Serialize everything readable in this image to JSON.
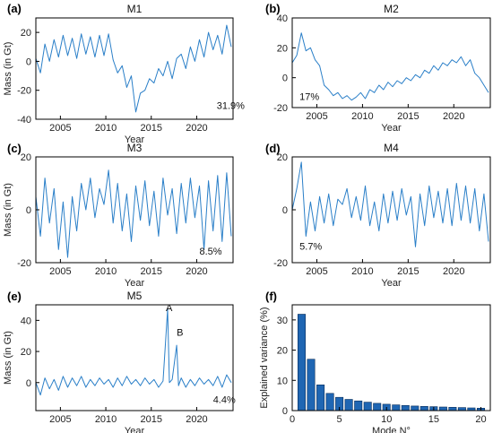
{
  "chart_data": [
    {
      "type": "line",
      "panel": "(a)",
      "title": "M1",
      "xlabel": "Year",
      "ylabel": "Mass (in Gt)",
      "xlim": [
        2002.3,
        2024.0
      ],
      "ylim": [
        -40,
        30
      ],
      "xticks": [
        2005,
        2010,
        2015,
        2020
      ],
      "yticks": [
        -40,
        -20,
        0,
        20
      ],
      "annotations": [
        {
          "text": "31.9%",
          "x": 2022.2,
          "y": -33
        }
      ],
      "series": [
        {
          "x": [
            2002.3,
            2002.8,
            2003.3,
            2003.8,
            2004.3,
            2004.8,
            2005.3,
            2005.8,
            2006.3,
            2006.8,
            2007.3,
            2007.8,
            2008.3,
            2008.8,
            2009.3,
            2009.8,
            2010.3,
            2010.8,
            2011.3,
            2011.8,
            2012.3,
            2012.8,
            2013.3,
            2013.8,
            2014.3,
            2014.8,
            2015.3,
            2015.8,
            2016.3,
            2016.8,
            2017.3,
            2017.8,
            2018.3,
            2018.8,
            2019.3,
            2019.8,
            2020.3,
            2020.8,
            2021.3,
            2021.8,
            2022.3,
            2022.8,
            2023.3,
            2023.8
          ],
          "y": [
            2,
            -8,
            12,
            0,
            15,
            3,
            18,
            4,
            16,
            2,
            19,
            5,
            17,
            3,
            18,
            4,
            19,
            1,
            -8,
            -3,
            -18,
            -10,
            -35,
            -22,
            -20,
            -12,
            -15,
            -5,
            -10,
            0,
            -12,
            2,
            5,
            -5,
            10,
            0,
            15,
            3,
            20,
            8,
            18,
            5,
            25,
            10
          ]
        }
      ]
    },
    {
      "type": "line",
      "panel": "(b)",
      "title": "M2",
      "xlabel": "Year",
      "ylabel": "",
      "xlim": [
        2002.3,
        2024.0
      ],
      "ylim": [
        -20,
        40
      ],
      "xticks": [
        2005,
        2010,
        2015,
        2020
      ],
      "yticks": [
        -20,
        0,
        20,
        40
      ],
      "annotations": [
        {
          "text": "17%",
          "x": 2003.1,
          "y": -15
        }
      ],
      "series": [
        {
          "x": [
            2002.3,
            2002.8,
            2003.3,
            2003.8,
            2004.3,
            2004.8,
            2005.3,
            2005.8,
            2006.3,
            2006.8,
            2007.3,
            2007.8,
            2008.3,
            2008.8,
            2009.3,
            2009.8,
            2010.3,
            2010.8,
            2011.3,
            2011.8,
            2012.3,
            2012.8,
            2013.3,
            2013.8,
            2014.3,
            2014.8,
            2015.3,
            2015.8,
            2016.3,
            2016.8,
            2017.3,
            2017.8,
            2018.3,
            2018.8,
            2019.3,
            2019.8,
            2020.3,
            2020.8,
            2021.3,
            2021.8,
            2022.3,
            2022.8,
            2023.3,
            2023.8
          ],
          "y": [
            10,
            15,
            30,
            18,
            20,
            12,
            8,
            -5,
            -8,
            -12,
            -10,
            -14,
            -12,
            -15,
            -13,
            -10,
            -14,
            -8,
            -10,
            -5,
            -8,
            -3,
            -6,
            -2,
            -4,
            0,
            -2,
            2,
            0,
            5,
            3,
            8,
            5,
            10,
            8,
            12,
            10,
            14,
            8,
            12,
            3,
            0,
            -5,
            -10
          ]
        }
      ]
    },
    {
      "type": "line",
      "panel": "(c)",
      "title": "M3",
      "xlabel": "Year",
      "ylabel": "Mass (in Gt)",
      "xlim": [
        2002.3,
        2024.0
      ],
      "ylim": [
        -20,
        20
      ],
      "xticks": [
        2005,
        2010,
        2015,
        2020
      ],
      "yticks": [
        -20,
        0,
        20
      ],
      "annotations": [
        {
          "text": "8.5%",
          "x": 2020.3,
          "y": -17
        }
      ],
      "series": [
        {
          "x": [
            2002.3,
            2002.8,
            2003.3,
            2003.8,
            2004.3,
            2004.8,
            2005.3,
            2005.8,
            2006.3,
            2006.8,
            2007.3,
            2007.8,
            2008.3,
            2008.8,
            2009.3,
            2009.8,
            2010.3,
            2010.8,
            2011.3,
            2011.8,
            2012.3,
            2012.8,
            2013.3,
            2013.8,
            2014.3,
            2014.8,
            2015.3,
            2015.8,
            2016.3,
            2016.8,
            2017.3,
            2017.8,
            2018.3,
            2018.8,
            2019.3,
            2019.8,
            2020.3,
            2020.8,
            2021.3,
            2021.8,
            2022.3,
            2022.8,
            2023.3,
            2023.8
          ],
          "y": [
            5,
            -10,
            12,
            -5,
            8,
            -15,
            3,
            -18,
            5,
            -8,
            10,
            0,
            12,
            -3,
            8,
            2,
            15,
            -5,
            10,
            -8,
            6,
            -12,
            9,
            -4,
            11,
            -6,
            7,
            -10,
            12,
            -2,
            8,
            -9,
            10,
            -5,
            12,
            -3,
            9,
            -15,
            11,
            -8,
            13,
            -12,
            14,
            -10
          ]
        }
      ]
    },
    {
      "type": "line",
      "panel": "(d)",
      "title": "M4",
      "xlabel": "Year",
      "ylabel": "",
      "xlim": [
        2002.3,
        2024.0
      ],
      "ylim": [
        -20,
        20
      ],
      "xticks": [
        2005,
        2010,
        2015,
        2020
      ],
      "yticks": [
        -20,
        0,
        20
      ],
      "annotations": [
        {
          "text": "5.7%",
          "x": 2003.1,
          "y": -15
        }
      ],
      "series": [
        {
          "x": [
            2002.3,
            2002.8,
            2003.3,
            2003.8,
            2004.3,
            2004.8,
            2005.3,
            2005.8,
            2006.3,
            2006.8,
            2007.3,
            2007.8,
            2008.3,
            2008.8,
            2009.3,
            2009.8,
            2010.3,
            2010.8,
            2011.3,
            2011.8,
            2012.3,
            2012.8,
            2013.3,
            2013.8,
            2014.3,
            2014.8,
            2015.3,
            2015.8,
            2016.3,
            2016.8,
            2017.3,
            2017.8,
            2018.3,
            2018.8,
            2019.3,
            2019.8,
            2020.3,
            2020.8,
            2021.3,
            2021.8,
            2022.3,
            2022.8,
            2023.3,
            2023.8
          ],
          "y": [
            0,
            8,
            18,
            -10,
            3,
            -8,
            5,
            -5,
            6,
            -6,
            4,
            2,
            8,
            -3,
            5,
            -4,
            9,
            -6,
            3,
            -8,
            6,
            -5,
            7,
            -4,
            8,
            -2,
            5,
            -14,
            6,
            -6,
            9,
            -3,
            7,
            -5,
            8,
            -6,
            10,
            -4,
            9,
            -5,
            8,
            -8,
            6,
            -12
          ]
        }
      ]
    },
    {
      "type": "line",
      "panel": "(e)",
      "title": "M5",
      "xlabel": "Year",
      "ylabel": "Mass (in Gt)",
      "xlim": [
        2002.3,
        2024.0
      ],
      "ylim": [
        -18,
        50
      ],
      "xticks": [
        2005,
        2010,
        2015,
        2020
      ],
      "yticks": [
        0,
        20,
        40
      ],
      "annotations": [
        {
          "text": "A",
          "x": 2016.6,
          "y": 46
        },
        {
          "text": "B",
          "x": 2017.8,
          "y": 30
        },
        {
          "text": "4.4%",
          "x": 2021.8,
          "y": -13
        }
      ],
      "series": [
        {
          "x": [
            2002.3,
            2002.8,
            2003.3,
            2003.8,
            2004.3,
            2004.8,
            2005.3,
            2005.8,
            2006.3,
            2006.8,
            2007.3,
            2007.8,
            2008.3,
            2008.8,
            2009.3,
            2009.8,
            2010.3,
            2010.8,
            2011.3,
            2011.8,
            2012.3,
            2012.8,
            2013.3,
            2013.8,
            2014.3,
            2014.8,
            2015.3,
            2015.8,
            2016.3,
            2016.8,
            2017.0,
            2017.3,
            2017.8,
            2018.0,
            2018.3,
            2018.8,
            2019.3,
            2019.8,
            2020.3,
            2020.8,
            2021.3,
            2021.8,
            2022.3,
            2022.8,
            2023.3,
            2023.8
          ],
          "y": [
            0,
            -8,
            3,
            -4,
            2,
            -5,
            4,
            -3,
            3,
            -2,
            4,
            -3,
            2,
            -2,
            3,
            -1,
            2,
            -3,
            3,
            -2,
            4,
            -1,
            2,
            -2,
            3,
            -1,
            2,
            -3,
            1,
            47,
            0,
            2,
            24,
            -2,
            3,
            -3,
            2,
            -2,
            3,
            -1,
            2,
            -2,
            4,
            -3,
            5,
            0
          ]
        }
      ]
    },
    {
      "type": "bar",
      "panel": "(f)",
      "title": "",
      "xlabel": "Mode N°",
      "ylabel": "Explained variance (%)",
      "xlim": [
        0,
        21
      ],
      "ylim": [
        0,
        35
      ],
      "xticks": [
        0,
        5,
        10,
        15,
        20
      ],
      "yticks": [
        0,
        10,
        20,
        30
      ],
      "categories": [
        1,
        2,
        3,
        4,
        5,
        6,
        7,
        8,
        9,
        10,
        11,
        12,
        13,
        14,
        15,
        16,
        17,
        18,
        19,
        20
      ],
      "values": [
        31.9,
        17.0,
        8.5,
        5.7,
        4.4,
        3.7,
        3.2,
        2.8,
        2.4,
        2.1,
        1.9,
        1.7,
        1.5,
        1.4,
        1.3,
        1.2,
        1.1,
        1.0,
        0.9,
        0.8
      ]
    }
  ]
}
